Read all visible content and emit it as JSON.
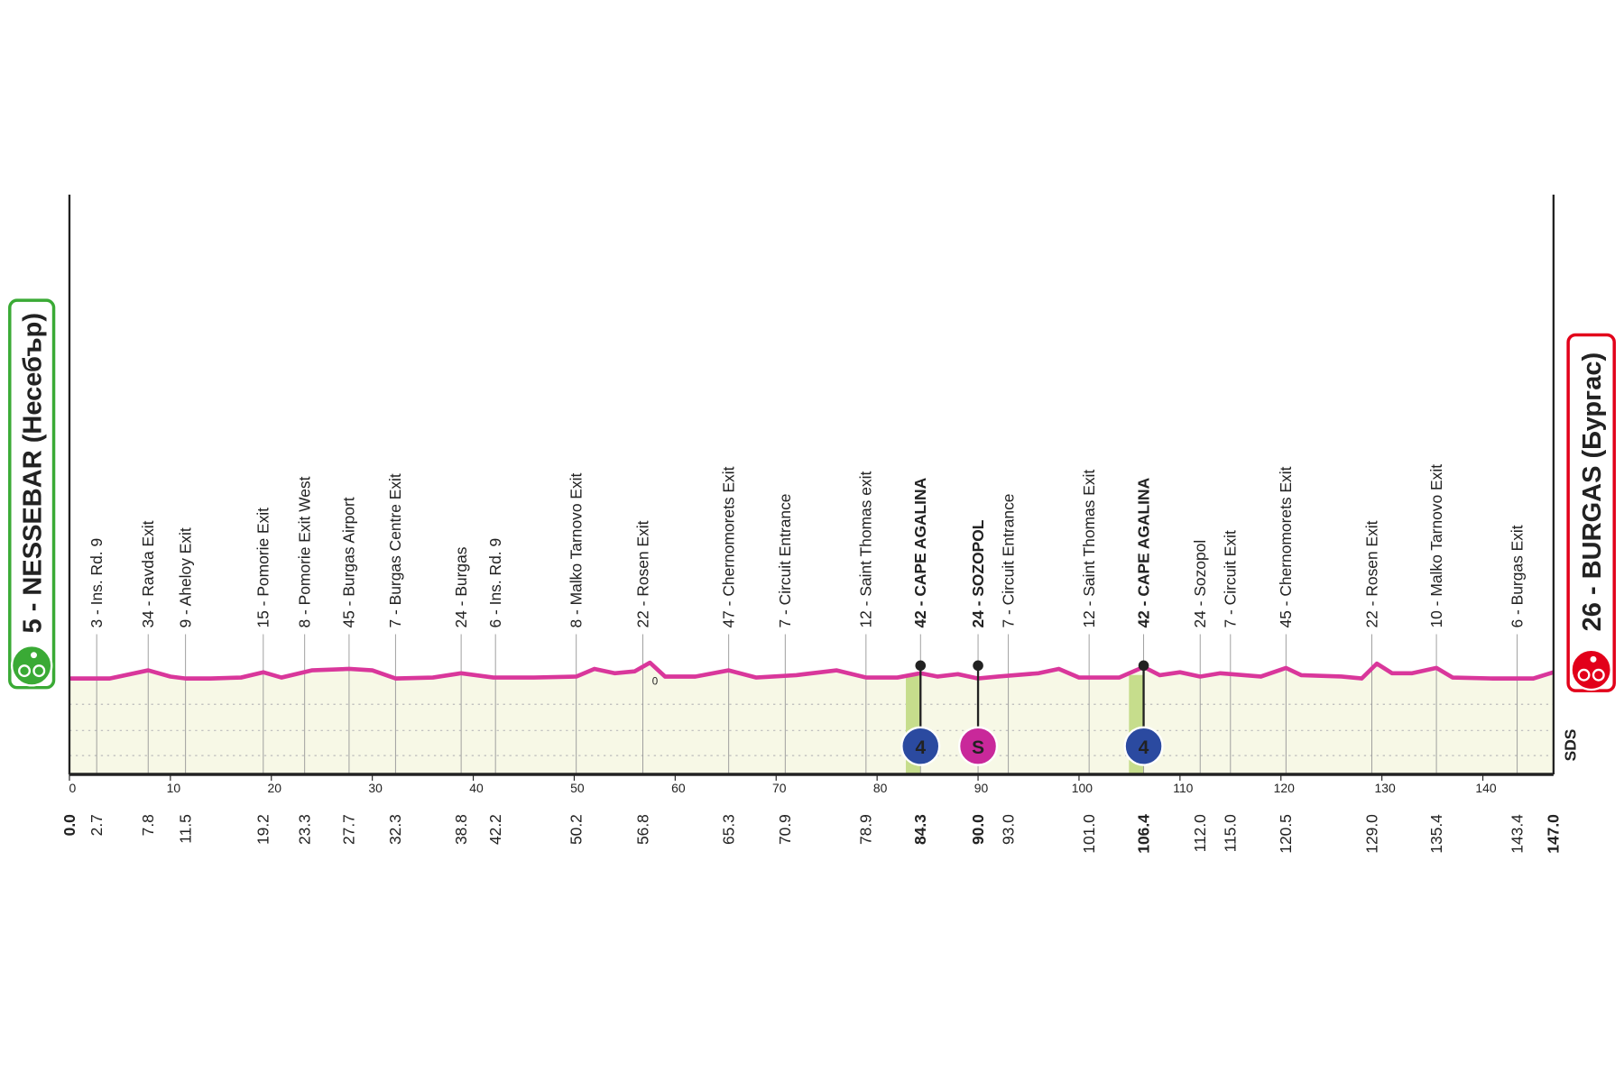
{
  "chart_data": {
    "type": "profile",
    "start": {
      "label": "5 - NESSEBAR (Несебър)",
      "color": "#3aaa35"
    },
    "finish": {
      "label": "26 - BURGAS (Бургас)",
      "color": "#e2001a"
    },
    "brand": "SDS",
    "xlim": [
      0,
      147
    ],
    "xticks": [
      0,
      10,
      20,
      30,
      40,
      50,
      60,
      70,
      80,
      90,
      100,
      110,
      120,
      130,
      140
    ],
    "ylim": [
      -200,
      1000
    ],
    "sea_level": 0,
    "line_color": "#d9379b",
    "fill_color": "#f7f8e6",
    "climb_color": "#c6dd8c",
    "elevation": {
      "x": [
        0,
        4,
        7.8,
        10,
        11.5,
        14,
        17,
        19.2,
        21,
        24,
        27.7,
        30,
        32.3,
        36,
        38.8,
        42,
        46,
        50.2,
        52,
        54,
        56,
        57.5,
        59,
        62,
        65.3,
        68,
        72,
        76,
        78.9,
        82,
        84.3,
        86,
        88,
        90,
        92,
        96,
        98,
        100,
        104,
        106.4,
        108,
        110,
        112,
        114,
        118,
        120.5,
        122,
        126,
        128,
        129.5,
        131,
        133,
        135.4,
        137,
        141,
        145,
        147
      ],
      "values": [
        0,
        0,
        17,
        4,
        0,
        0,
        2,
        13,
        2,
        17,
        20,
        17,
        0,
        2,
        11,
        2,
        2,
        4,
        20,
        11,
        15,
        33,
        4,
        4,
        17,
        2,
        7,
        17,
        2,
        2,
        11,
        4,
        9,
        0,
        4,
        11,
        20,
        2,
        2,
        24,
        7,
        13,
        4,
        11,
        4,
        22,
        7,
        4,
        0,
        31,
        11,
        11,
        22,
        2,
        0,
        0,
        13
      ]
    },
    "waypoints": [
      {
        "km": {
          "value": 0,
          "label": "0.0"
        },
        "bold": true
      },
      {
        "km": 2.7,
        "name": "3 - Ins. Rd. 9"
      },
      {
        "km": 7.8,
        "name": "34 - Ravda Exit"
      },
      {
        "km": 11.5,
        "name": "9 - Aheloy Exit"
      },
      {
        "km": 19.2,
        "name": "15 - Pomorie Exit"
      },
      {
        "km": 23.3,
        "name": "8 - Pomorie Exit West"
      },
      {
        "km": 27.7,
        "name": "45 - Burgas Airport"
      },
      {
        "km": 32.3,
        "name": "7 - Burgas Centre Exit"
      },
      {
        "km": 38.8,
        "name": "24 - Burgas"
      },
      {
        "km": 42.2,
        "name": "6 - Ins. Rd. 9"
      },
      {
        "km": 50.2,
        "name": "8 - Malko Tarnovo Exit"
      },
      {
        "km": 56.8,
        "name": "22 - Rosen Exit"
      },
      {
        "km": 65.3,
        "name": "47 - Chernomorets Exit"
      },
      {
        "km": 70.9,
        "name": "7 - Circuit Entrance"
      },
      {
        "km": 78.9,
        "name": "12 - Saint Thomas exit"
      },
      {
        "km": 84.3,
        "name": "42 - CAPE AGALINA",
        "bold": true,
        "marker": {
          "label": "4",
          "color": "#2b4aa0"
        }
      },
      {
        "km": {
          "value": 90,
          "label": "90.0"
        },
        "name": "24 - SOZOPOL",
        "bold": true,
        "marker": {
          "label": "S",
          "color": "#c9289a"
        }
      },
      {
        "km": {
          "value": 93,
          "label": "93.0"
        },
        "name": "7 - Circuit Entrance"
      },
      {
        "km": {
          "value": 101,
          "label": "101.0"
        },
        "name": "12 - Saint Thomas Exit"
      },
      {
        "km": 106.4,
        "name": "42 - CAPE AGALINA",
        "bold": true,
        "marker": {
          "label": "4",
          "color": "#2b4aa0"
        }
      },
      {
        "km": {
          "value": 112,
          "label": "112.0"
        },
        "name": "24 - Sozopol"
      },
      {
        "km": {
          "value": 115,
          "label": "115.0"
        },
        "name": "7 - Circuit Exit"
      },
      {
        "km": 120.5,
        "name": "45 - Chernomorets Exit"
      },
      {
        "km": {
          "value": 129,
          "label": "129.0"
        },
        "name": "22 - Rosen Exit"
      },
      {
        "km": 135.4,
        "name": "10 - Malko Tarnovo Exit"
      },
      {
        "km": 143.4,
        "name": "6 - Burgas Exit"
      },
      {
        "km": {
          "value": 147,
          "label": "147.0"
        },
        "bold": true
      }
    ]
  }
}
